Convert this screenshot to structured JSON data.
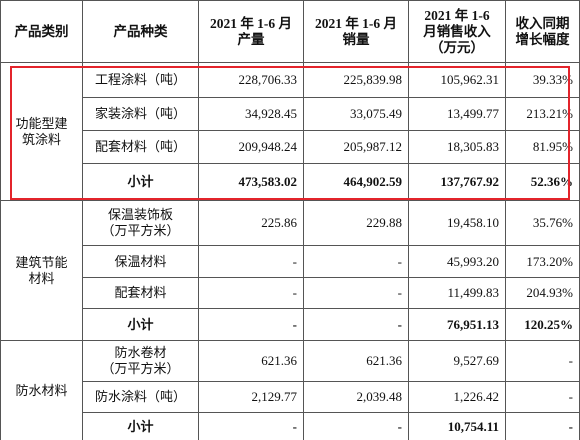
{
  "table": {
    "header": [
      [
        "产品类别"
      ],
      [
        "产品种类"
      ],
      [
        "2021 年 1-6 月",
        "产量"
      ],
      [
        "2021 年 1-6 月",
        "销量"
      ],
      [
        "2021 年 1-6",
        "月销售收入",
        "（万元）"
      ],
      [
        "收入同期",
        "增长幅度"
      ]
    ],
    "groups": [
      {
        "category": [
          "功能型建",
          "筑涂料"
        ],
        "rows": [
          [
            [
              "工程涂料（吨）"
            ],
            "228,706.33",
            "225,839.98",
            "105,962.31",
            "39.33%"
          ],
          [
            [
              "家装涂料（吨）"
            ],
            "34,928.45",
            "33,075.49",
            "13,499.77",
            "213.21%"
          ],
          [
            [
              "配套材料（吨）"
            ],
            "209,948.24",
            "205,987.12",
            "18,305.83",
            "81.95%"
          ],
          [
            [
              "小计"
            ],
            "473,583.02",
            "464,902.59",
            "137,767.92",
            "52.36%"
          ]
        ]
      },
      {
        "category": [
          "建筑节能",
          "材料"
        ],
        "rows": [
          [
            [
              "保温装饰板",
              "（万平方米）"
            ],
            "225.86",
            "229.88",
            "19,458.10",
            "35.76%"
          ],
          [
            [
              "保温材料"
            ],
            "-",
            "-",
            "45,993.20",
            "173.20%"
          ],
          [
            [
              "配套材料"
            ],
            "-",
            "-",
            "11,499.83",
            "204.93%"
          ],
          [
            [
              "小计"
            ],
            "-",
            "-",
            "76,951.13",
            "120.25%"
          ]
        ]
      },
      {
        "category": [
          "防水材料"
        ],
        "rows": [
          [
            [
              "防水卷材",
              "（万平方米）"
            ],
            "621.36",
            "621.36",
            "9,527.69",
            "-"
          ],
          [
            [
              "防水涂料（吨）"
            ],
            "2,129.77",
            "2,039.48",
            "1,226.42",
            "-"
          ],
          [
            [
              "小计"
            ],
            "-",
            "-",
            "10,754.11",
            "-"
          ]
        ]
      }
    ]
  }
}
